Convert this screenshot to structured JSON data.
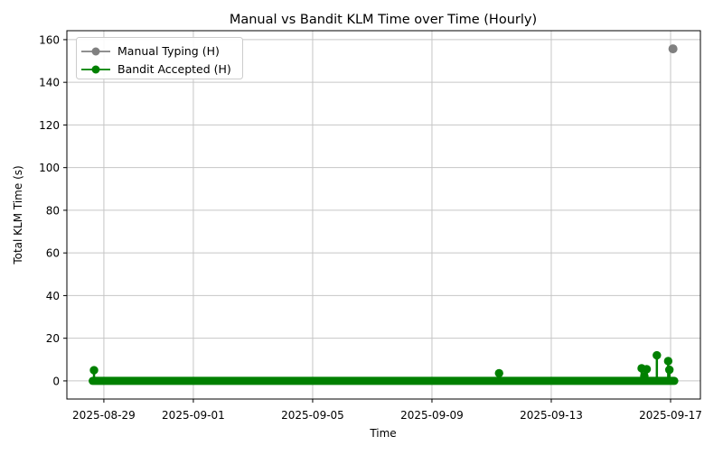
{
  "chart_data": {
    "type": "line",
    "title": "Manual vs Bandit KLM Time over Time (Hourly)",
    "xlabel": "Time",
    "ylabel": "Total KLM Time (s)",
    "grid": true,
    "background": "#ffffff",
    "colors": {
      "grid": "#c6c6c6",
      "spine": "#000000",
      "text": "#000000",
      "manual": "#808080",
      "bandit": "#008000",
      "legend_border": "#cccccc",
      "legend_bg": "#ffffff"
    },
    "legend": {
      "position": "upper left",
      "entries": [
        {
          "label": "Manual Typing (H)",
          "color": "#808080"
        },
        {
          "label": "Bandit Accepted (H)",
          "color": "#008000"
        }
      ]
    },
    "x_axis": {
      "epoch": "days since 2025-08-27 00:00",
      "xlim": [
        0.76,
        22.0
      ],
      "ticks": [
        {
          "t": 2,
          "label": "2025-08-29"
        },
        {
          "t": 5,
          "label": "2025-09-01"
        },
        {
          "t": 9,
          "label": "2025-09-05"
        },
        {
          "t": 13,
          "label": "2025-09-09"
        },
        {
          "t": 17,
          "label": "2025-09-13"
        },
        {
          "t": 21,
          "label": "2025-09-17"
        }
      ]
    },
    "y_axis": {
      "ticks": [
        0,
        20,
        40,
        60,
        80,
        100,
        120,
        140,
        160
      ],
      "ylim": [
        -8.5,
        164.2
      ]
    },
    "series": [
      {
        "name": "Manual Typing (H)",
        "color": "#808080",
        "marker": "circle",
        "points": [
          {
            "t": 21.08,
            "time": "2025-09-17 02:00",
            "y": 155.7
          }
        ]
      },
      {
        "name": "Bandit Accepted (H)",
        "color": "#008000",
        "marker": "circle",
        "baseline": {
          "t_start": 1.625,
          "t_end": 21.125,
          "time_start": "2025-08-28 15:00",
          "time_end": "2025-09-17 03:00",
          "y": 0,
          "note": "dense hourly points at ~0 s forming a thick line"
        },
        "peaks": [
          {
            "t": 1.67,
            "time": "2025-08-28 16:00",
            "y": 5.0
          },
          {
            "t": 15.25,
            "time": "2025-09-11 06:00",
            "y": 3.6
          },
          {
            "t": 20.03,
            "time": "2025-09-16 01:00",
            "y": 5.9
          },
          {
            "t": 20.12,
            "time": "2025-09-16 03:00",
            "y": 2.2
          },
          {
            "t": 20.2,
            "time": "2025-09-16 05:00",
            "y": 5.5
          },
          {
            "t": 20.54,
            "time": "2025-09-16 13:00",
            "y": 12.0
          },
          {
            "t": 20.92,
            "time": "2025-09-16 22:00",
            "y": 9.3
          },
          {
            "t": 20.96,
            "time": "2025-09-16 23:00",
            "y": 5.2
          }
        ]
      }
    ]
  }
}
